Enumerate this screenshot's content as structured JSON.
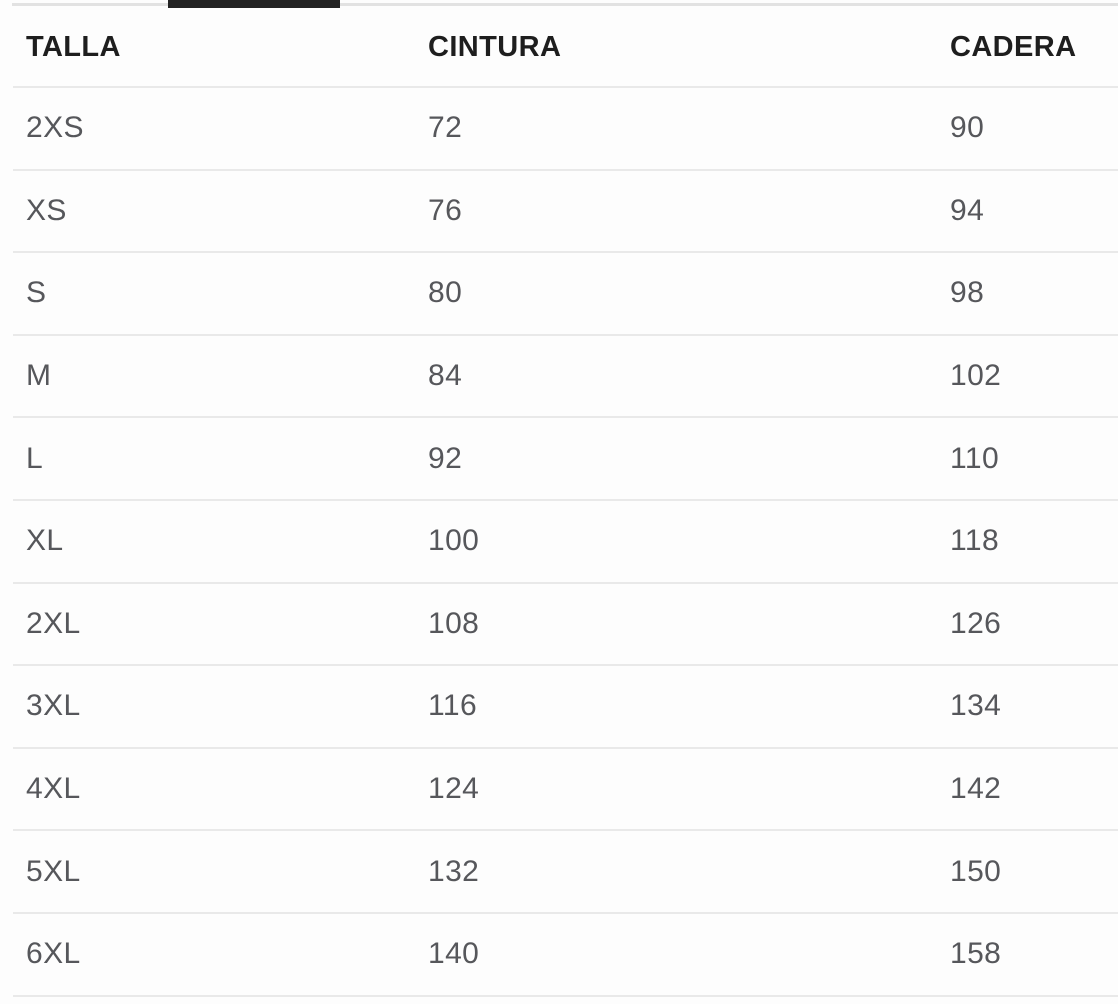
{
  "colors": {
    "background": "#fdfdfd",
    "tab_indicator": "#232323",
    "tab_line": "#e2e2e2",
    "header_text": "#1e1e1e",
    "body_text": "#56575b",
    "divider": "#e9e9e9"
  },
  "table": {
    "columns": [
      {
        "id": "talla",
        "label": "TALLA"
      },
      {
        "id": "cintura",
        "label": "CINTURA"
      },
      {
        "id": "cadera",
        "label": "CADERA"
      }
    ],
    "rows": [
      {
        "talla": "2XS",
        "cintura": "72",
        "cadera": "90"
      },
      {
        "talla": "XS",
        "cintura": "76",
        "cadera": "94"
      },
      {
        "talla": "S",
        "cintura": "80",
        "cadera": "98"
      },
      {
        "talla": "M",
        "cintura": "84",
        "cadera": "102"
      },
      {
        "talla": "L",
        "cintura": "92",
        "cadera": "110"
      },
      {
        "talla": "XL",
        "cintura": "100",
        "cadera": "118"
      },
      {
        "talla": "2XL",
        "cintura": "108",
        "cadera": "126"
      },
      {
        "talla": "3XL",
        "cintura": "116",
        "cadera": "134"
      },
      {
        "talla": "4XL",
        "cintura": "124",
        "cadera": "142"
      },
      {
        "talla": "5XL",
        "cintura": "132",
        "cadera": "150"
      },
      {
        "talla": "6XL",
        "cintura": "140",
        "cadera": "158"
      }
    ]
  }
}
